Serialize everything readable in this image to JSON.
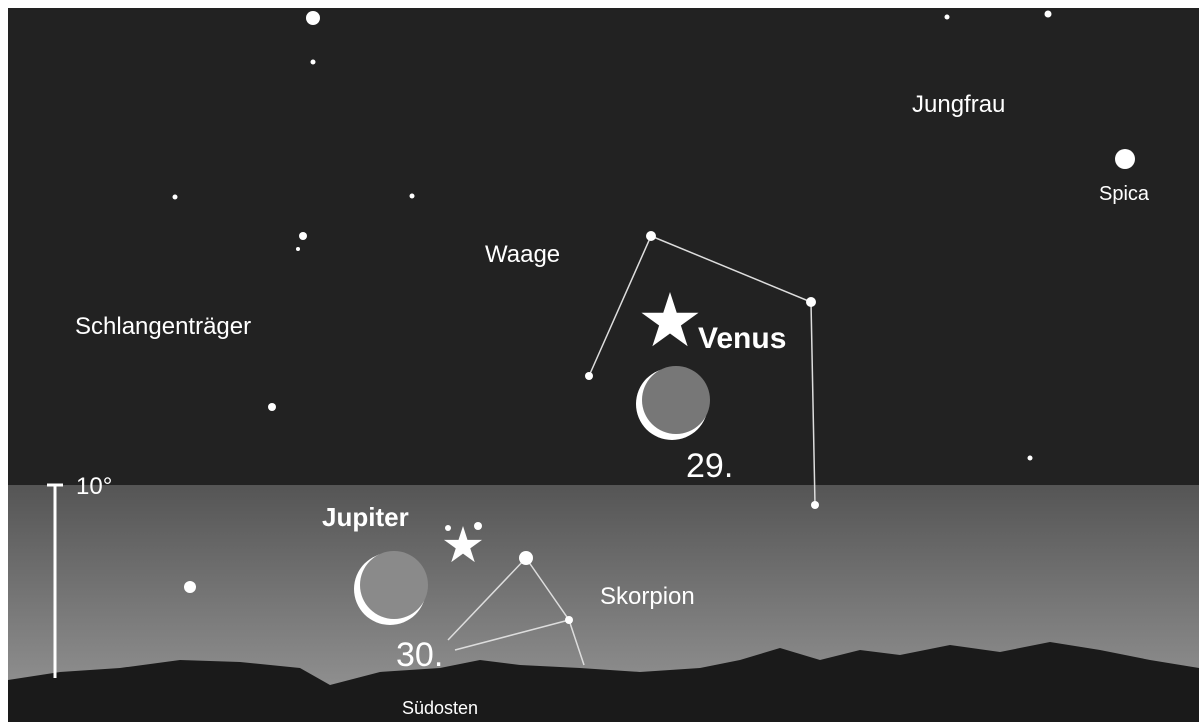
{
  "constellations": [
    "Jungfrau",
    "Waage",
    "Schlangenträger",
    "Skorpion"
  ],
  "stars": [
    "Spica"
  ],
  "planets": [
    "Venus",
    "Jupiter"
  ],
  "moon_dates": [
    "29.",
    "30."
  ],
  "scale_label": "10°",
  "direction": "Südosten"
}
